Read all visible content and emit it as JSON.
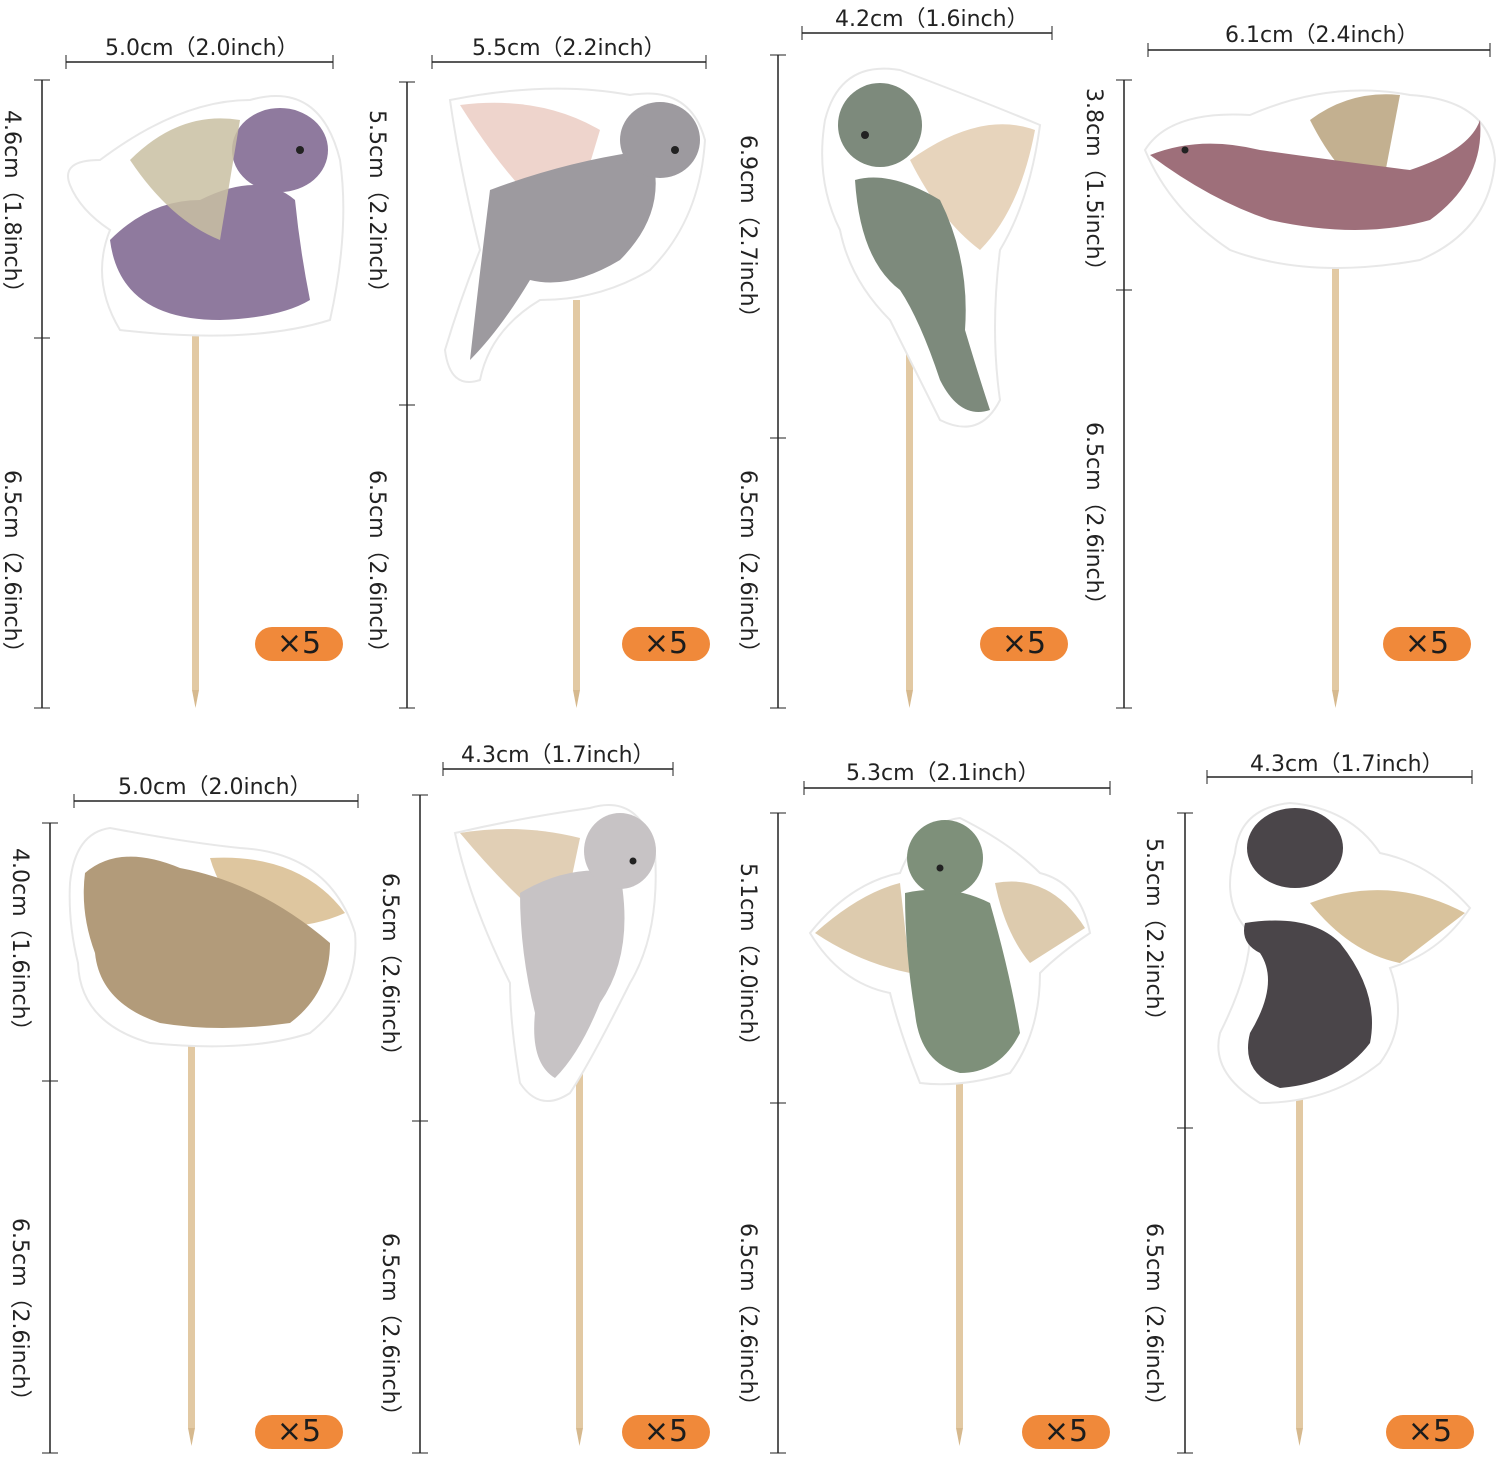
{
  "toppers": [
    {
      "width_label": "5.0cm（2.0inch）",
      "head_label": "4.6cm（1.8inch）",
      "stick_label": "6.5cm（2.6inch）",
      "badge": "×5",
      "color": "#8f7a9e",
      "wing": "#c9bfa2"
    },
    {
      "width_label": "5.5cm（2.2inch）",
      "head_label": "5.5cm（2.2inch）",
      "stick_label": "6.5cm（2.6inch）",
      "badge": "×5",
      "color": "#9d9a9f",
      "wing": "#eac9bf"
    },
    {
      "width_label": "4.2cm（1.6inch）",
      "head_label": "6.9cm（2.7inch）",
      "stick_label": "6.5cm（2.6inch）",
      "badge": "×5",
      "color": "#7d8a7c",
      "wing": "#e3cdb0"
    },
    {
      "width_label": "6.1cm（2.4inch）",
      "head_label": "3.8cm（1.5inch）",
      "stick_label": "6.5cm（2.6inch）",
      "badge": "×5",
      "color": "#9e6f7a",
      "wing": "#b8a27d"
    },
    {
      "width_label": "5.0cm（2.0inch）",
      "head_label": "4.0cm（1.6inch）",
      "stick_label": "6.5cm（2.6inch）",
      "badge": "×5",
      "color": "#b29b7a",
      "wing": "#d8bc8e"
    },
    {
      "width_label": "4.3cm（1.7inch）",
      "head_label": "6.5cm（2.6inch）",
      "stick_label": "6.5cm（2.6inch）",
      "badge": "×5",
      "color": "#c7c3c5",
      "wing": "#d9c3a2"
    },
    {
      "width_label": "5.3cm（2.1inch）",
      "head_label": "5.1cm（2.0inch）",
      "stick_label": "6.5cm（2.6inch）",
      "badge": "×5",
      "color": "#7e907a",
      "wing": "#d7c2a0"
    },
    {
      "width_label": "4.3cm（1.7inch）",
      "head_label": "5.5cm（2.2inch）",
      "stick_label": "6.5cm（2.6inch）",
      "badge": "×5",
      "color": "#4a4549",
      "wing": "#d2b98c"
    }
  ],
  "colors": {
    "badge": "#f0893a",
    "stick": "#e2c9a3",
    "dimension_line": "#222222"
  }
}
